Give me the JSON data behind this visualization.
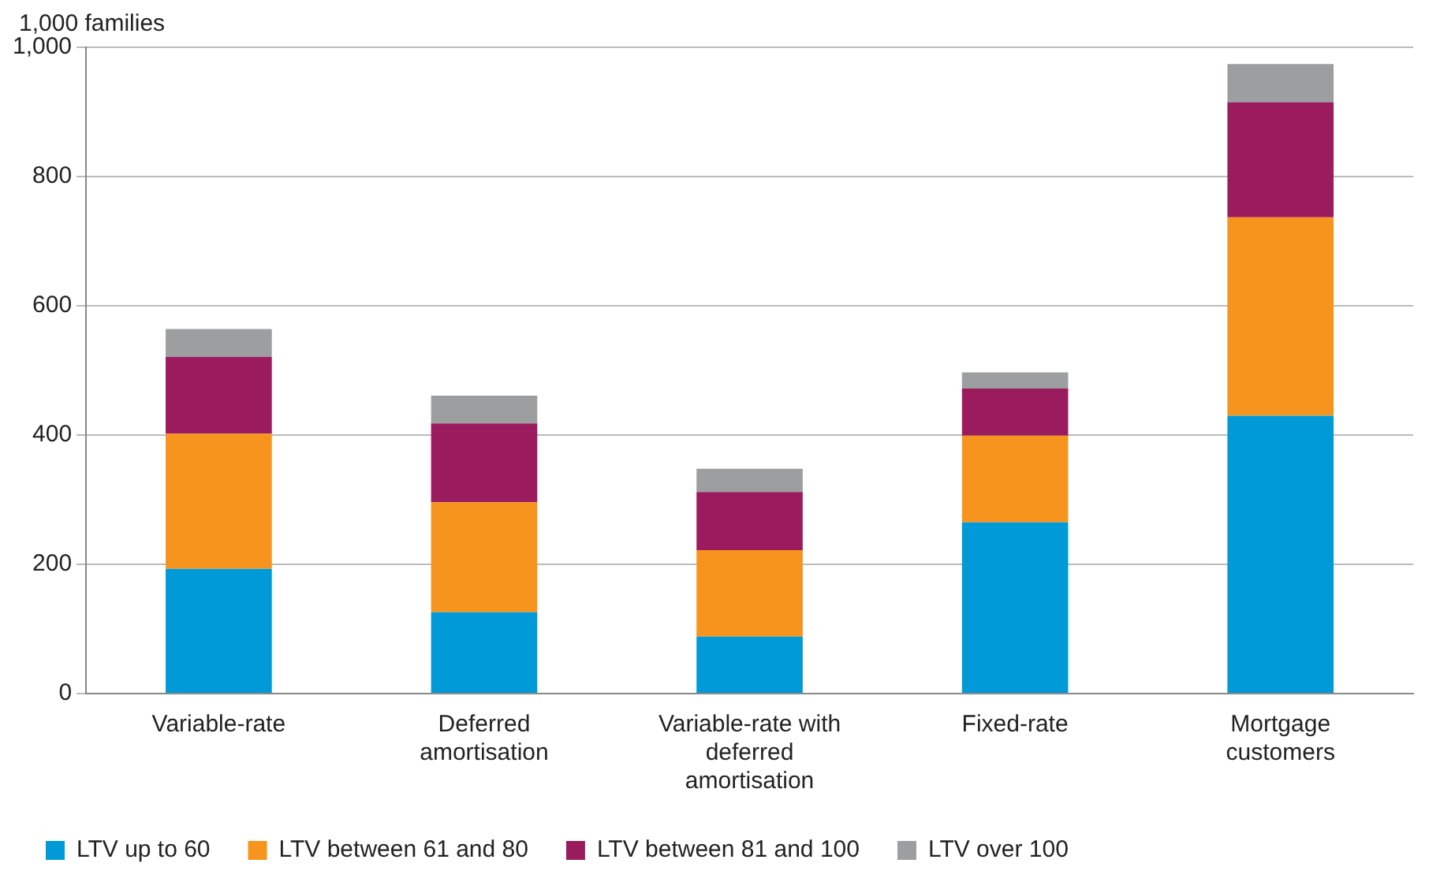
{
  "chart_data": {
    "type": "bar",
    "stacked": true,
    "ylabel": "1,000 families",
    "categories": [
      "Variable-rate",
      "Deferred amortisation",
      "Variable-rate with deferred amortisation",
      "Fixed-rate",
      "Mortgage customers"
    ],
    "series": [
      {
        "name": "LTV up to 60",
        "color": "#009ad9",
        "values": [
          193,
          126,
          88,
          265,
          430
        ]
      },
      {
        "name": "LTV between 61 and 80",
        "color": "#f7941d",
        "values": [
          209,
          170,
          134,
          134,
          307
        ]
      },
      {
        "name": "LTV between 81 and 100",
        "color": "#9b1b5f",
        "values": [
          119,
          122,
          90,
          73,
          178
        ]
      },
      {
        "name": "LTV over 100",
        "color": "#9c9ea0",
        "values": [
          43,
          43,
          36,
          25,
          59
        ]
      }
    ],
    "ylim": [
      0,
      1000
    ],
    "yticks": [
      0,
      200,
      400,
      600,
      800,
      {
        "value": 1000,
        "label": "1,000"
      }
    ],
    "grid": "y",
    "legend": "bottom left"
  }
}
